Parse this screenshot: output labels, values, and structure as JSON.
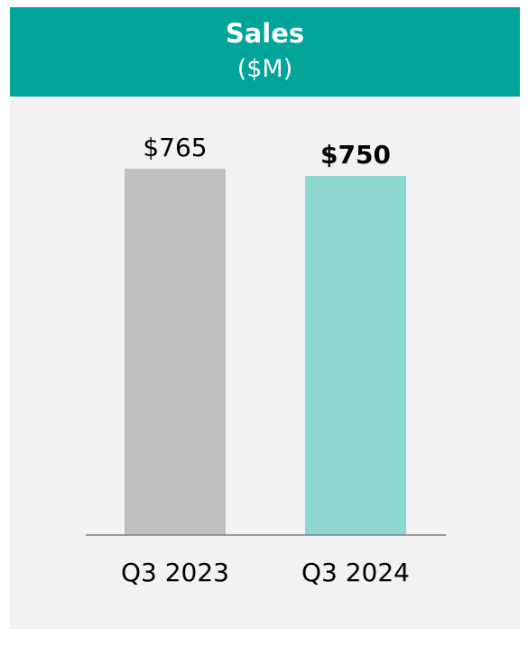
{
  "colors": {
    "header_bg": "#00a499",
    "panel_bg": "#f2f2f2",
    "axis": "#7f7f7f",
    "text": "#000000"
  },
  "header": {
    "title": "Sales",
    "subtitle": "($M)"
  },
  "chart_data": {
    "type": "bar",
    "title": "Sales",
    "subtitle": "($M)",
    "categories": [
      "Q3 2023",
      "Q3 2024"
    ],
    "values": [
      765,
      750
    ],
    "value_labels": [
      "$765",
      "$750"
    ],
    "bar_colors": [
      "#bfbfbf",
      "#8fd6d1"
    ],
    "label_bold": [
      false,
      true
    ],
    "ylim": [
      0,
      765
    ],
    "xlabel": "",
    "ylabel": "",
    "grid": false,
    "legend": "none"
  }
}
